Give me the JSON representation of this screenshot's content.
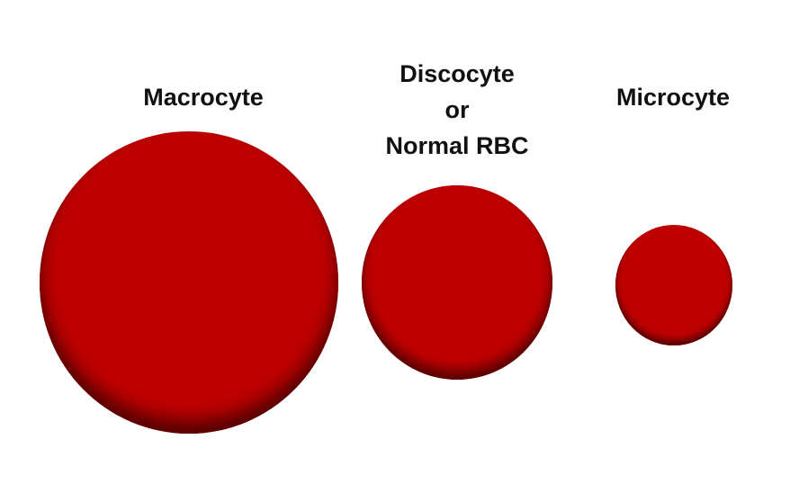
{
  "colors": {
    "cell_fill": "#c00000",
    "cell_rim": "#8a0000",
    "cell_shadow": "#5a0000",
    "label_text": "#111111",
    "background": "#ffffff"
  },
  "labels": {
    "macrocyte": "Macrocyte",
    "discocyte_line1": "Discocyte",
    "discocyte_line2": "or",
    "discocyte_line3": "Normal RBC",
    "microcyte": "Microcyte"
  }
}
